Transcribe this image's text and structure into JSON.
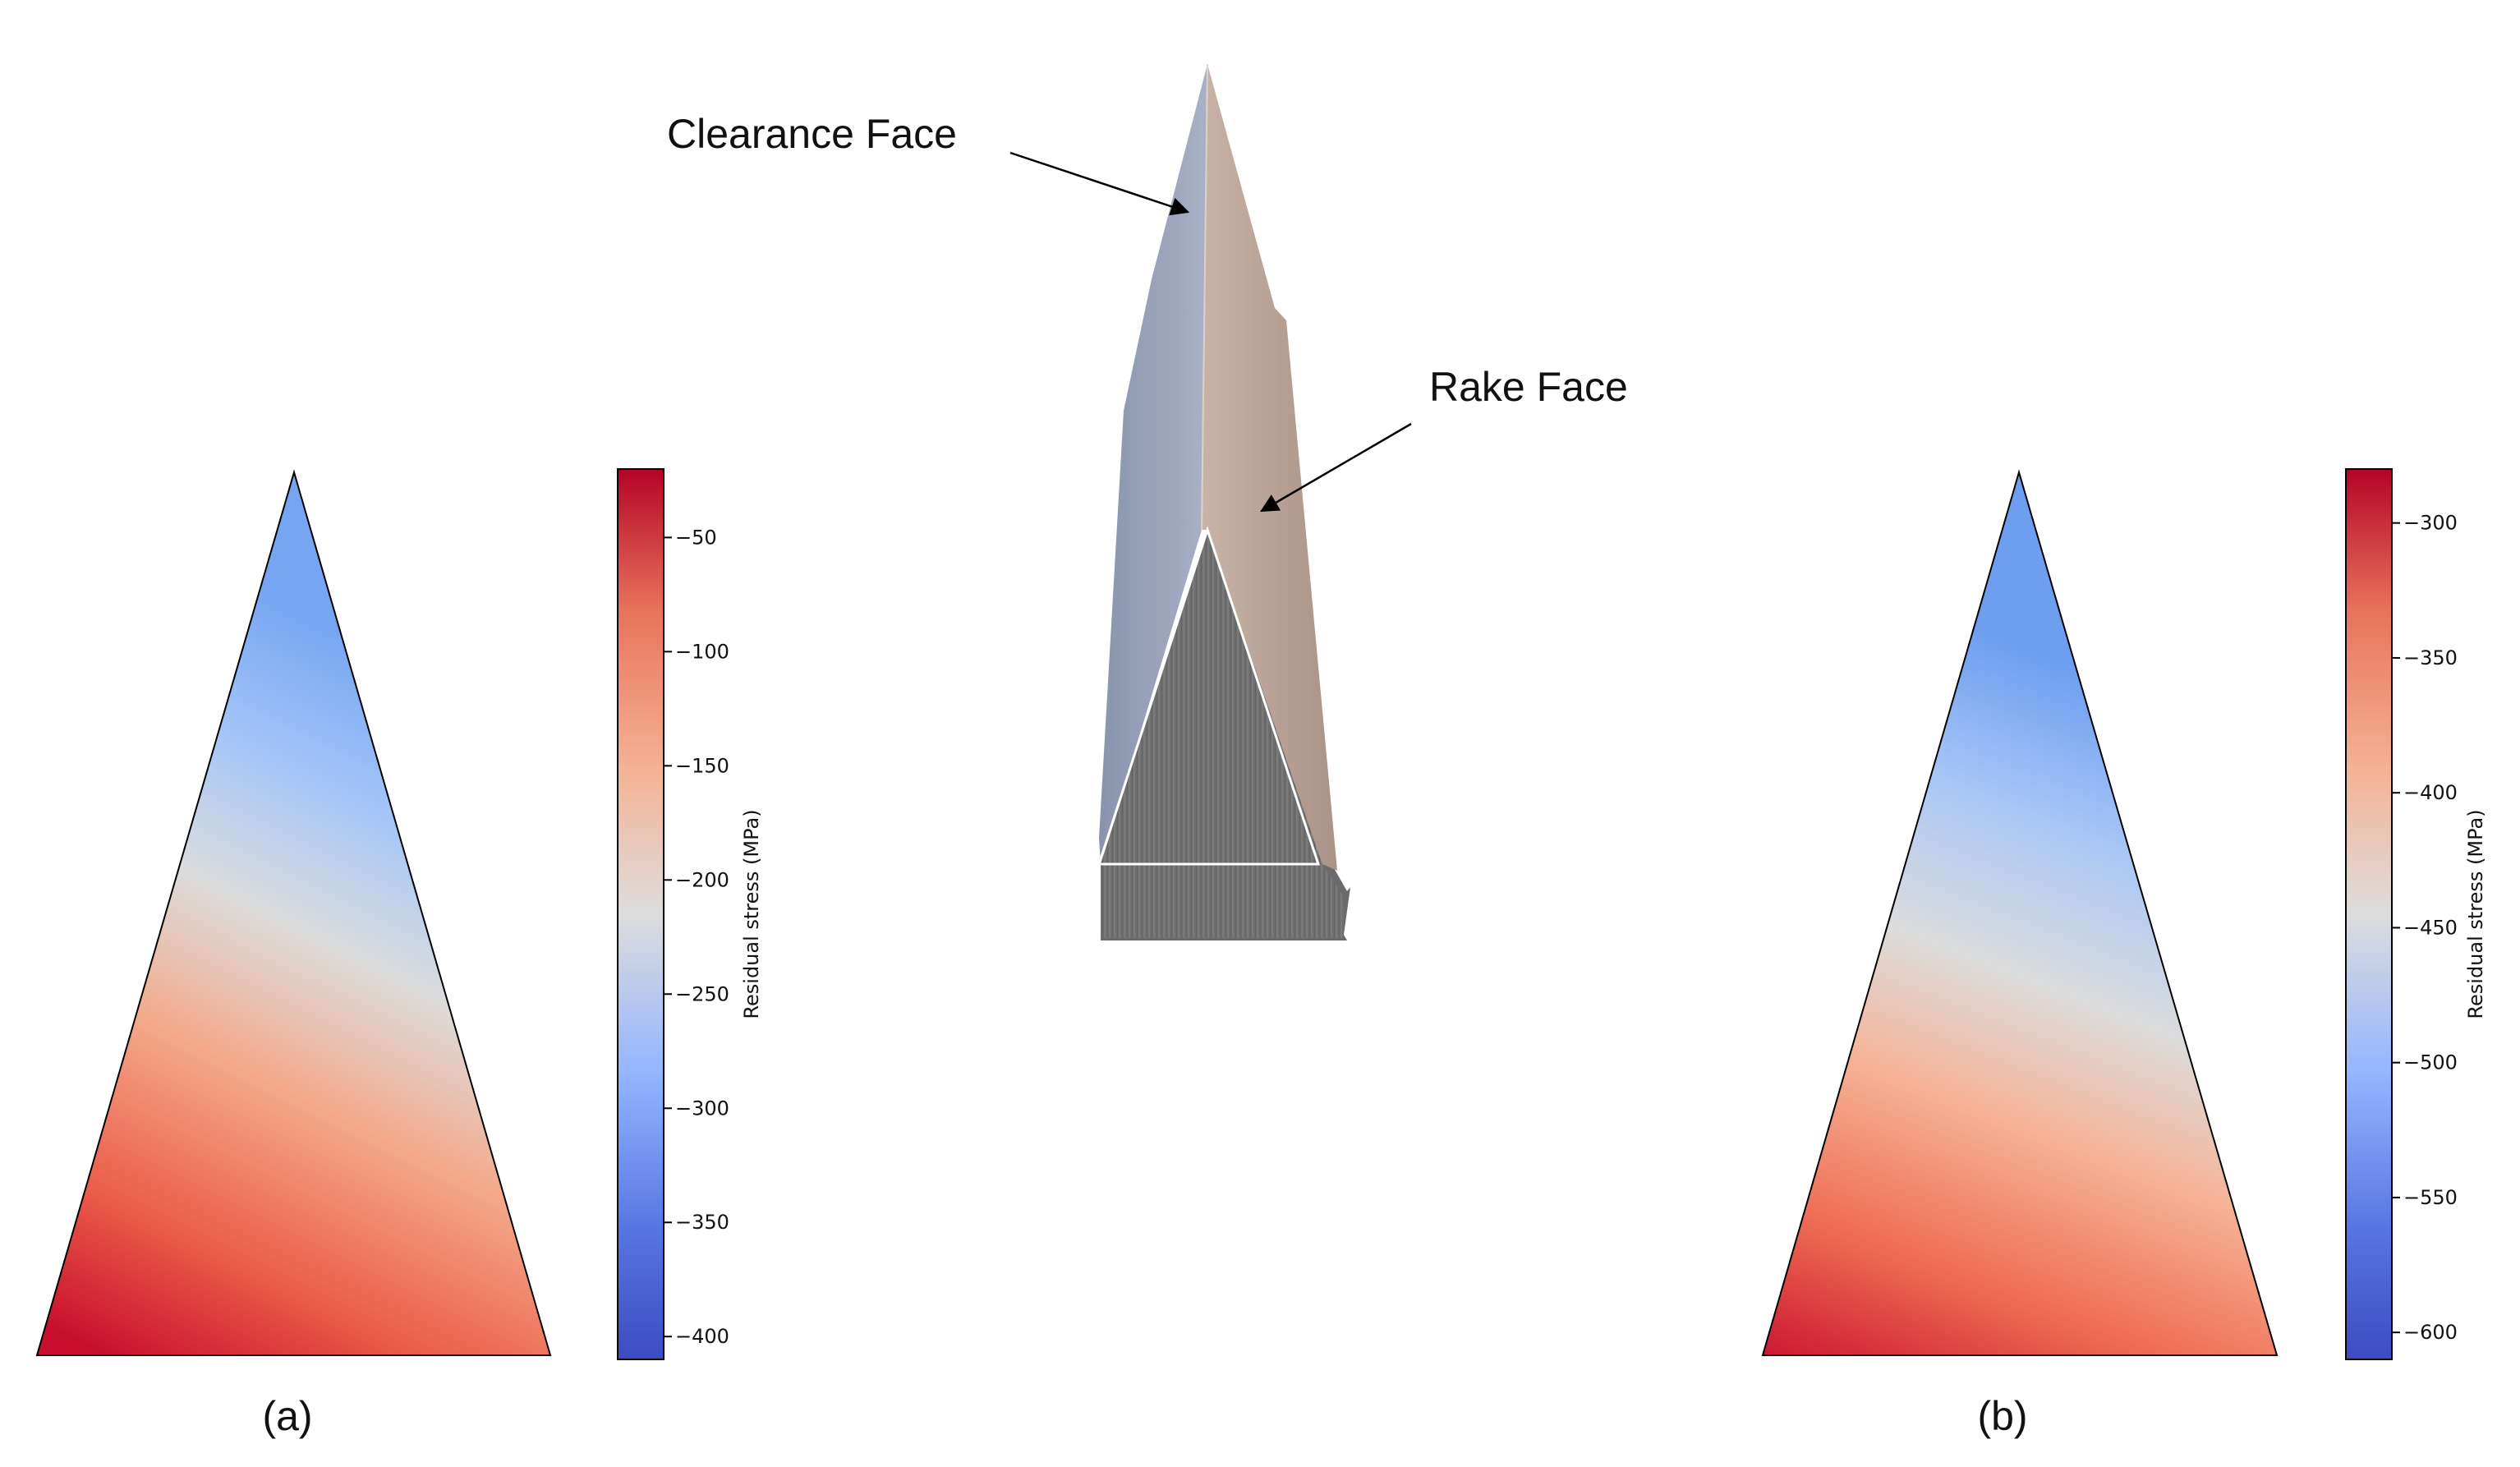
{
  "annotations": {
    "clearance_face": "Clearance Face",
    "rake_face": "Rake Face"
  },
  "panels": [
    {
      "caption": "(a)",
      "colorbar_label": "Residual stress (MPa)",
      "range": [
        -410,
        -20
      ],
      "ticks": [
        "−50",
        "−100",
        "−150",
        "−200",
        "−250",
        "−300",
        "−350",
        "−400"
      ]
    },
    {
      "caption": "(b)",
      "colorbar_label": "Residual stress (MPa)",
      "range": [
        -610,
        -280
      ],
      "ticks": [
        "−300",
        "−350",
        "−400",
        "−450",
        "−500",
        "−550",
        "−600"
      ]
    }
  ],
  "colormap": {
    "name": "coolwarm",
    "low": "#3b4cc0",
    "mid": "#dddddd",
    "high": "#b40426"
  }
}
